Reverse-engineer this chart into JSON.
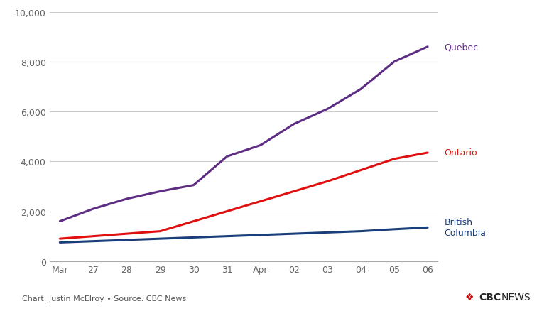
{
  "x_labels": [
    "Mar",
    "27",
    "28",
    "29",
    "30",
    "31",
    "Apr",
    "02",
    "03",
    "04",
    "05",
    "06"
  ],
  "quebec": [
    1600,
    2100,
    2500,
    2800,
    3050,
    4200,
    4650,
    5500,
    6100,
    6900,
    8000,
    8600
  ],
  "ontario": [
    900,
    1000,
    1100,
    1200,
    1600,
    2000,
    2400,
    2800,
    3200,
    3650,
    4100,
    4350
  ],
  "bc": [
    750,
    800,
    850,
    900,
    950,
    1000,
    1050,
    1100,
    1150,
    1200,
    1280,
    1350
  ],
  "quebec_color": "#5c2d82",
  "ontario_color": "#e01010",
  "bc_color": "#1a3e7a",
  "background_color": "#ffffff",
  "ylim": [
    0,
    10000
  ],
  "yticks": [
    0,
    2000,
    4000,
    6000,
    8000,
    10000
  ],
  "grid_color": "#cccccc",
  "label_quebec": "Quebec",
  "label_ontario": "Ontario",
  "label_bc": "British\nColumbia",
  "footer_text": "Chart: Justin McElroy • Source: CBC News",
  "line_width": 2.2
}
